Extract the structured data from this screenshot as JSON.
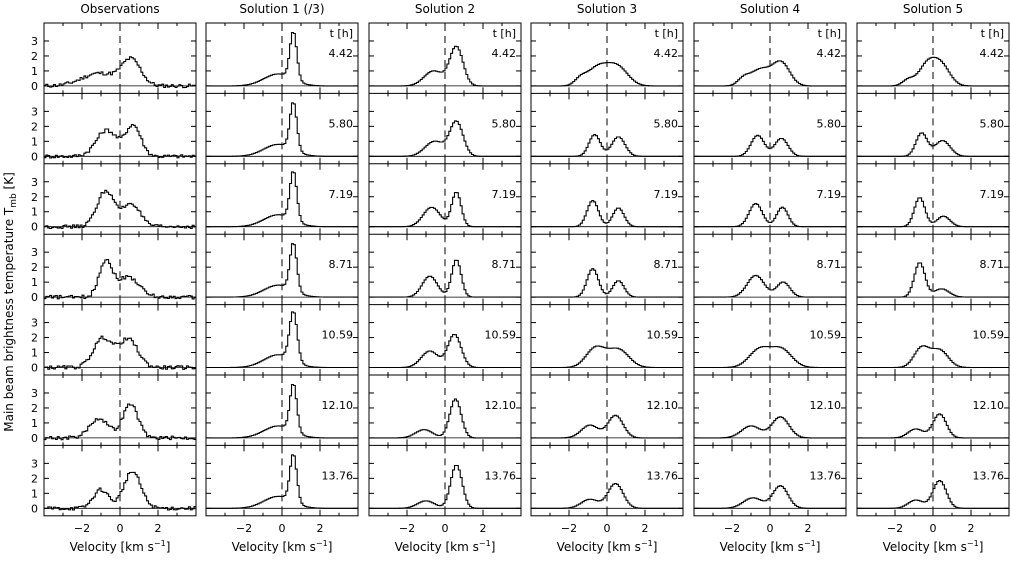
{
  "figure": {
    "ylabel": "Main beam brightness temperature T",
    "ylabel_sub": "mb",
    "ylabel_unit": " [K]",
    "xlabel": "Velocity  [km s",
    "xlabel_sup": "−1",
    "xlabel_end": "]",
    "time_header": "t [h]"
  },
  "chart_data": {
    "type": "line",
    "step": true,
    "xlim": [
      -4,
      4
    ],
    "ylim": [
      -0.5,
      4.2
    ],
    "x_ticks": [
      -2,
      0,
      2
    ],
    "y_ticks": [
      0,
      1,
      2,
      3
    ],
    "times": [
      "4.42",
      "5.80",
      "7.19",
      "8.71",
      "10.59",
      "12.10",
      "13.76"
    ],
    "columns": [
      {
        "title": "Observations",
        "noise": 0.12,
        "profiles": [
          [
            [
              -1.1,
              0.85,
              0.9
            ],
            [
              0.6,
              1.7,
              0.5
            ]
          ],
          [
            [
              -0.7,
              1.75,
              0.55
            ],
            [
              0.7,
              2.05,
              0.4
            ]
          ],
          [
            [
              -0.75,
              2.4,
              0.45
            ],
            [
              0.6,
              1.55,
              0.45
            ]
          ],
          [
            [
              -0.75,
              2.4,
              0.35
            ],
            [
              0.45,
              1.35,
              0.55
            ]
          ],
          [
            [
              -0.9,
              1.95,
              0.5
            ],
            [
              0.45,
              1.85,
              0.5
            ]
          ],
          [
            [
              -1.1,
              1.3,
              0.5
            ],
            [
              0.55,
              2.25,
              0.4
            ]
          ],
          [
            [
              -1.0,
              1.25,
              0.4
            ],
            [
              0.65,
              2.45,
              0.45
            ]
          ]
        ]
      },
      {
        "title": "Solution 1 (/3)",
        "noise": 0,
        "profiles": [
          [
            [
              -0.2,
              0.8,
              0.75
            ],
            [
              0.6,
              3.2,
              0.18
            ]
          ],
          [
            [
              -0.2,
              0.8,
              0.75
            ],
            [
              0.6,
              3.2,
              0.18
            ]
          ],
          [
            [
              -0.2,
              0.8,
              0.75
            ],
            [
              0.6,
              3.3,
              0.18
            ]
          ],
          [
            [
              -0.2,
              0.8,
              0.75
            ],
            [
              0.6,
              3.2,
              0.18
            ]
          ],
          [
            [
              -0.2,
              0.85,
              0.75
            ],
            [
              0.6,
              3.3,
              0.2
            ]
          ],
          [
            [
              -0.2,
              0.8,
              0.75
            ],
            [
              0.6,
              3.2,
              0.18
            ]
          ],
          [
            [
              -0.2,
              0.8,
              0.75
            ],
            [
              0.6,
              3.2,
              0.18
            ]
          ]
        ]
      },
      {
        "title": "Solution 2",
        "noise": 0,
        "profiles": [
          [
            [
              -0.6,
              1.0,
              0.5
            ],
            [
              0.6,
              2.6,
              0.35
            ]
          ],
          [
            [
              -0.55,
              1.0,
              0.5
            ],
            [
              0.6,
              2.3,
              0.35
            ]
          ],
          [
            [
              -0.7,
              1.3,
              0.45
            ],
            [
              0.6,
              2.3,
              0.25
            ]
          ],
          [
            [
              -0.8,
              1.4,
              0.4
            ],
            [
              0.6,
              2.5,
              0.25
            ]
          ],
          [
            [
              -0.8,
              1.1,
              0.45
            ],
            [
              0.5,
              2.2,
              0.35
            ]
          ],
          [
            [
              -1.1,
              0.55,
              0.45
            ],
            [
              0.55,
              2.6,
              0.3
            ]
          ],
          [
            [
              -1.0,
              0.5,
              0.45
            ],
            [
              0.6,
              2.9,
              0.3
            ]
          ]
        ]
      },
      {
        "title": "Solution 3",
        "noise": 0,
        "profiles": [
          [
            [
              -0.5,
              1.2,
              0.55
            ],
            [
              0.55,
              1.25,
              0.55
            ],
            [
              -1.4,
              0.4,
              0.3
            ]
          ],
          [
            [
              -0.65,
              1.45,
              0.3
            ],
            [
              0.6,
              1.3,
              0.35
            ]
          ],
          [
            [
              -0.75,
              1.75,
              0.3
            ],
            [
              0.6,
              1.25,
              0.3
            ]
          ],
          [
            [
              -0.75,
              1.9,
              0.3
            ],
            [
              0.6,
              1.1,
              0.3
            ]
          ],
          [
            [
              -0.6,
              1.3,
              0.5
            ],
            [
              0.6,
              1.2,
              0.55
            ]
          ],
          [
            [
              -0.9,
              0.85,
              0.45
            ],
            [
              0.45,
              1.5,
              0.4
            ]
          ],
          [
            [
              -0.9,
              0.6,
              0.45
            ],
            [
              0.45,
              1.65,
              0.4
            ]
          ]
        ]
      },
      {
        "title": "Solution 4",
        "noise": 0,
        "profiles": [
          [
            [
              -0.5,
              1.1,
              0.55
            ],
            [
              0.6,
              1.5,
              0.45
            ],
            [
              -1.4,
              0.4,
              0.3
            ]
          ],
          [
            [
              -0.65,
              1.4,
              0.35
            ],
            [
              0.6,
              1.2,
              0.35
            ]
          ],
          [
            [
              -0.75,
              1.55,
              0.35
            ],
            [
              0.65,
              1.3,
              0.3
            ]
          ],
          [
            [
              -0.75,
              1.45,
              0.45
            ],
            [
              0.7,
              1.0,
              0.35
            ]
          ],
          [
            [
              -0.55,
              1.2,
              0.55
            ],
            [
              0.6,
              1.2,
              0.55
            ]
          ],
          [
            [
              -1.0,
              0.8,
              0.5
            ],
            [
              0.55,
              1.4,
              0.45
            ]
          ],
          [
            [
              -0.9,
              0.7,
              0.5
            ],
            [
              0.55,
              1.5,
              0.4
            ]
          ]
        ]
      },
      {
        "title": "Solution 5",
        "noise": 0,
        "profiles": [
          [
            [
              -0.3,
              1.4,
              0.45
            ],
            [
              0.45,
              1.3,
              0.45
            ],
            [
              -1.3,
              0.4,
              0.3
            ]
          ],
          [
            [
              -0.6,
              1.55,
              0.3
            ],
            [
              0.5,
              1.05,
              0.4
            ]
          ],
          [
            [
              -0.7,
              1.95,
              0.28
            ],
            [
              0.55,
              0.7,
              0.35
            ]
          ],
          [
            [
              -0.7,
              2.3,
              0.28
            ],
            [
              0.45,
              0.55,
              0.4
            ]
          ],
          [
            [
              -0.6,
              1.3,
              0.4
            ],
            [
              0.35,
              1.15,
              0.45
            ]
          ],
          [
            [
              -0.9,
              0.6,
              0.4
            ],
            [
              0.35,
              1.6,
              0.35
            ]
          ],
          [
            [
              -0.9,
              0.55,
              0.4
            ],
            [
              0.35,
              1.85,
              0.35
            ]
          ]
        ]
      }
    ]
  }
}
